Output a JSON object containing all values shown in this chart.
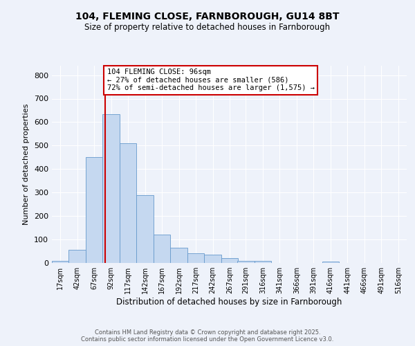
{
  "title1": "104, FLEMING CLOSE, FARNBOROUGH, GU14 8BT",
  "title2": "Size of property relative to detached houses in Farnborough",
  "xlabel": "Distribution of detached houses by size in Farnborough",
  "ylabel": "Number of detached properties",
  "bin_labels": [
    "17sqm",
    "42sqm",
    "67sqm",
    "92sqm",
    "117sqm",
    "142sqm",
    "167sqm",
    "192sqm",
    "217sqm",
    "242sqm",
    "267sqm",
    "291sqm",
    "316sqm",
    "341sqm",
    "366sqm",
    "391sqm",
    "416sqm",
    "441sqm",
    "466sqm",
    "491sqm",
    "516sqm"
  ],
  "bin_edges": [
    17,
    42,
    67,
    92,
    117,
    142,
    167,
    192,
    217,
    242,
    267,
    291,
    316,
    341,
    366,
    391,
    416,
    441,
    466,
    491,
    516
  ],
  "bar_heights": [
    8,
    57,
    450,
    635,
    510,
    290,
    120,
    65,
    40,
    35,
    20,
    8,
    8,
    0,
    0,
    0,
    5,
    0,
    0,
    0
  ],
  "bar_color": "#c5d8f0",
  "bar_edge_color": "#6699cc",
  "property_size": 96,
  "vline_color": "#cc0000",
  "annotation_line1": "104 FLEMING CLOSE: 96sqm",
  "annotation_line2": "← 27% of detached houses are smaller (586)",
  "annotation_line3": "72% of semi-detached houses are larger (1,575) →",
  "annotation_box_color": "#ffffff",
  "annotation_box_edge": "#cc0000",
  "footer_text": "Contains HM Land Registry data © Crown copyright and database right 2025.\nContains public sector information licensed under the Open Government Licence v3.0.",
  "ylim": [
    0,
    840
  ],
  "yticks": [
    0,
    100,
    200,
    300,
    400,
    500,
    600,
    700,
    800
  ],
  "background_color": "#eef2fa",
  "grid_color": "#ffffff"
}
